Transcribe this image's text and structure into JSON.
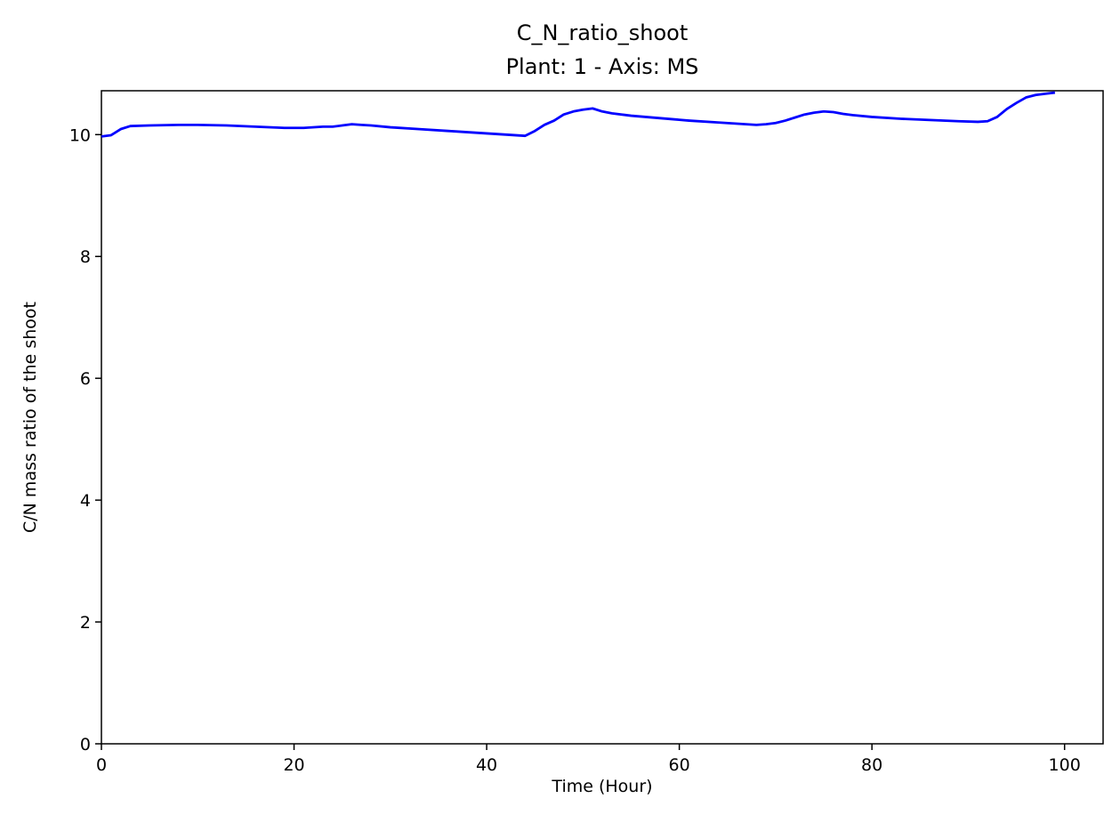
{
  "chart_data": {
    "type": "line",
    "title": "C_N_ratio_shoot",
    "subtitle": "Plant: 1 - Axis: MS",
    "xlabel": "Time (Hour)",
    "ylabel": "C/N mass ratio of the shoot",
    "xlim": [
      0,
      104
    ],
    "ylim": [
      0,
      10.72
    ],
    "xticks": [
      0,
      20,
      40,
      60,
      80,
      100
    ],
    "yticks": [
      0,
      2,
      4,
      6,
      8,
      10
    ],
    "grid": false,
    "line_color": "#0000ff",
    "series": [
      {
        "x": [
          0,
          1,
          2,
          3,
          5,
          8,
          10,
          13,
          16,
          19,
          21,
          23,
          24,
          25,
          26,
          27,
          28,
          30,
          33,
          36,
          38,
          40,
          42,
          44,
          45,
          46,
          47,
          48,
          49,
          50,
          51,
          52,
          53,
          55,
          58,
          61,
          64,
          66,
          68,
          69,
          70,
          71,
          72,
          73,
          74,
          75,
          76,
          77,
          78,
          80,
          83,
          86,
          89,
          91,
          92,
          93,
          94,
          95,
          96,
          97,
          98,
          99
        ],
        "y": [
          9.97,
          9.99,
          10.09,
          10.14,
          10.15,
          10.16,
          10.16,
          10.15,
          10.13,
          10.11,
          10.11,
          10.13,
          10.13,
          10.15,
          10.17,
          10.16,
          10.15,
          10.12,
          10.09,
          10.06,
          10.04,
          10.02,
          10.0,
          9.98,
          10.06,
          10.16,
          10.23,
          10.33,
          10.38,
          10.41,
          10.43,
          10.38,
          10.35,
          10.31,
          10.27,
          10.23,
          10.2,
          10.18,
          10.16,
          10.17,
          10.19,
          10.23,
          10.28,
          10.33,
          10.36,
          10.38,
          10.37,
          10.34,
          10.32,
          10.29,
          10.26,
          10.24,
          10.22,
          10.21,
          10.22,
          10.29,
          10.42,
          10.52,
          10.61,
          10.65,
          10.67,
          10.69
        ]
      }
    ]
  }
}
